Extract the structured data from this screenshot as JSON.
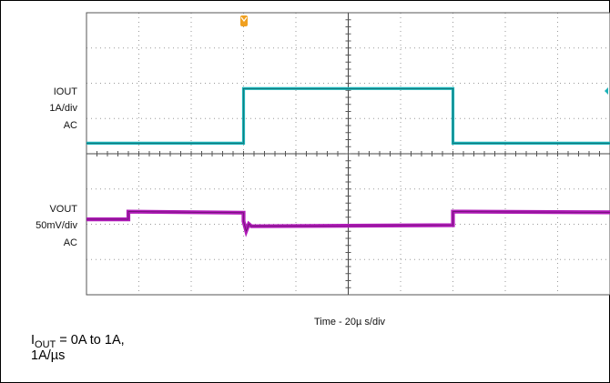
{
  "chart_data": {
    "type": "line",
    "title": "",
    "xlabel": "Time - 20µ s/div",
    "channels": [
      {
        "name_line": "IOUT",
        "scale": "1A/div",
        "coupling": "AC",
        "color": "#1ab2b8"
      },
      {
        "name_line": "VOUT",
        "scale": "50mV/div",
        "coupling": "AC",
        "color": "#b01ab8"
      }
    ],
    "grid": true,
    "x_divisions": 10,
    "y_divisions": 8,
    "xlim": [
      0,
      200
    ],
    "xunit": "µs",
    "series": [
      {
        "channel": "IOUT",
        "unit": "A",
        "x": [
          0,
          60,
          60,
          140,
          140,
          200
        ],
        "y": [
          0,
          0,
          1,
          1,
          0,
          0
        ]
      },
      {
        "channel": "VOUT",
        "unit": "mV",
        "x": [
          0,
          16,
          16,
          60,
          60,
          61,
          62,
          63,
          140,
          140,
          200
        ],
        "y": [
          0,
          0,
          20,
          17,
          -5,
          -30,
          -12,
          -18,
          -15,
          20,
          18
        ]
      }
    ]
  },
  "caption": {
    "line1_prefix": "I",
    "line1_sub": "OUT",
    "line1_suffix": " = 0A to 1A,",
    "line2": "1A/µs"
  }
}
